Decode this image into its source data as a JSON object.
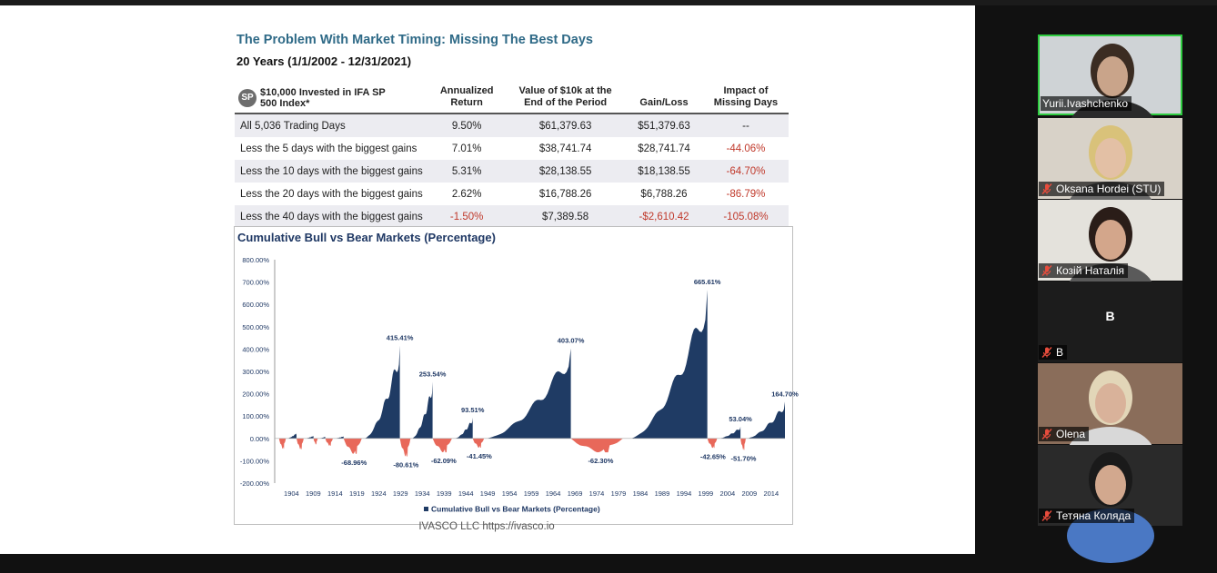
{
  "slide": {
    "title": "The Problem With Market Timing: Missing The Best Days",
    "subtitle": "20 Years (1/1/2002 - 12/31/2021)",
    "sp_badge": "SP",
    "headers": [
      "$10,000 Invested in IFA SP 500 Index*",
      "Annualized Return",
      "Value of $10k at the End of the Period",
      "Gain/Loss",
      "Impact of Missing Days"
    ],
    "rows": [
      [
        "All 5,036 Trading Days",
        "9.50%",
        "$61,379.63",
        "$51,379.63",
        "--"
      ],
      [
        "Less the 5 days with the biggest gains",
        "7.01%",
        "$38,741.74",
        "$28,741.74",
        "-44.06%"
      ],
      [
        "Less the 10 days with the biggest gains",
        "5.31%",
        "$28,138.55",
        "$18,138.55",
        "-64.70%"
      ],
      [
        "Less the 20 days with the biggest gains",
        "2.62%",
        "$16,788.26",
        "$6,788.26",
        "-86.79%"
      ],
      [
        "Less the 40 days with the biggest gains",
        "-1.50%",
        "$7,389.58",
        "-$2,610.42",
        "-105.08%"
      ]
    ],
    "footer": "IVASCO LLC https://ivasco.io"
  },
  "chart_data": {
    "type": "area",
    "title": "Cumulative Bull vs Bear Markets (Percentage)",
    "legend": "Cumulative Bull vs Bear Markets (Percentage)",
    "legend_position": "bottom",
    "ylim": [
      -200,
      800
    ],
    "yticks": [
      "800.00%",
      "700.00%",
      "600.00%",
      "500.00%",
      "400.00%",
      "300.00%",
      "200.00%",
      "100.00%",
      "0.00%",
      "-100.00%",
      "-200.00%"
    ],
    "xticks": [
      "1904",
      "1909",
      "1914",
      "1919",
      "1924",
      "1929",
      "1934",
      "1939",
      "1944",
      "1949",
      "1954",
      "1959",
      "1964",
      "1969",
      "1974",
      "1979",
      "1984",
      "1989",
      "1994",
      "1999",
      "2004",
      "2009",
      "2014"
    ],
    "xlim": [
      1901,
      2018
    ],
    "bull_color": "#1f3b64",
    "bear_color": "#e8685a",
    "markets": [
      {
        "kind": "bear",
        "start": 1902.0,
        "end": 1903.8,
        "peak": -46,
        "label": ""
      },
      {
        "kind": "bull",
        "start": 1903.8,
        "end": 1906.0,
        "peak": 25,
        "label": ""
      },
      {
        "kind": "bear",
        "start": 1906.0,
        "end": 1907.9,
        "peak": -48,
        "label": ""
      },
      {
        "kind": "bull",
        "start": 1907.9,
        "end": 1909.9,
        "peak": 12,
        "label": ""
      },
      {
        "kind": "bear",
        "start": 1909.9,
        "end": 1911.0,
        "peak": -27,
        "label": ""
      },
      {
        "kind": "bull",
        "start": 1911.0,
        "end": 1912.6,
        "peak": 8,
        "label": ""
      },
      {
        "kind": "bear",
        "start": 1912.6,
        "end": 1914.6,
        "peak": -33,
        "label": ""
      },
      {
        "kind": "bull",
        "start": 1914.6,
        "end": 1916.8,
        "peak": 10,
        "label": ""
      },
      {
        "kind": "bear",
        "start": 1916.8,
        "end": 1921.6,
        "peak": -68.96,
        "label": "-68.96%"
      },
      {
        "kind": "bull",
        "start": 1921.6,
        "end": 1929.7,
        "peak": 415.41,
        "label": "415.41%"
      },
      {
        "kind": "bear",
        "start": 1929.7,
        "end": 1932.5,
        "peak": -80.61,
        "label": "-80.61%"
      },
      {
        "kind": "bull",
        "start": 1932.5,
        "end": 1937.2,
        "peak": 253.54,
        "label": "253.54%"
      },
      {
        "kind": "bear",
        "start": 1937.2,
        "end": 1942.3,
        "peak": -62.09,
        "label": "-62.09%"
      },
      {
        "kind": "bull",
        "start": 1942.3,
        "end": 1946.4,
        "peak": 93.51,
        "label": "93.51%"
      },
      {
        "kind": "bear",
        "start": 1946.4,
        "end": 1949.4,
        "peak": -41.45,
        "label": "-41.45%"
      },
      {
        "kind": "bull",
        "start": 1949.4,
        "end": 1968.9,
        "peak": 403.07,
        "label": "403.07%"
      },
      {
        "kind": "bear",
        "start": 1968.9,
        "end": 1982.6,
        "peak": -62.3,
        "label": "-62.30%"
      },
      {
        "kind": "bull",
        "start": 1982.6,
        "end": 2000.2,
        "peak": 665.61,
        "label": "665.61%"
      },
      {
        "kind": "bear",
        "start": 2000.2,
        "end": 2002.8,
        "peak": -42.65,
        "label": "-42.65%"
      },
      {
        "kind": "bull",
        "start": 2002.8,
        "end": 2007.8,
        "peak": 53.04,
        "label": "53.04%"
      },
      {
        "kind": "bear",
        "start": 2007.8,
        "end": 2009.2,
        "peak": -51.7,
        "label": "-51.70%"
      },
      {
        "kind": "bull",
        "start": 2009.2,
        "end": 2018.0,
        "peak": 164.7,
        "label": "164.70%"
      }
    ]
  },
  "participants": [
    {
      "name": "Yurii.Ivashchenko",
      "muted": false,
      "active": true,
      "bg": "#cfd3d6",
      "face": "#c9a48a",
      "hair": "#3b2c22",
      "shirt": "#2a2a2a"
    },
    {
      "name": "Oksana Hordei (STU)",
      "muted": true,
      "active": false,
      "bg": "#d8d2c8",
      "face": "#e3c0a5",
      "hair": "#d9c27a",
      "shirt": "#6b6b6b"
    },
    {
      "name": "Козій Наталія",
      "muted": true,
      "active": false,
      "bg": "#e4e2dc",
      "face": "#d3a68b",
      "hair": "#2a1d18",
      "shirt": "#5a5a5a"
    },
    {
      "name": "B",
      "muted": true,
      "active": false,
      "initial": "B"
    },
    {
      "name": "Olena",
      "muted": true,
      "active": false,
      "bg": "#8a6d5a",
      "face": "#d9b29a",
      "hair": "#e2d6b8",
      "shirt": "#d8d8d8"
    },
    {
      "name": "Тетяна Коляда",
      "muted": true,
      "active": false,
      "bg": "#2a2a2a",
      "face": "#d2a88e",
      "hair": "#1a1a1a",
      "shirt": "#4a78c4"
    }
  ]
}
